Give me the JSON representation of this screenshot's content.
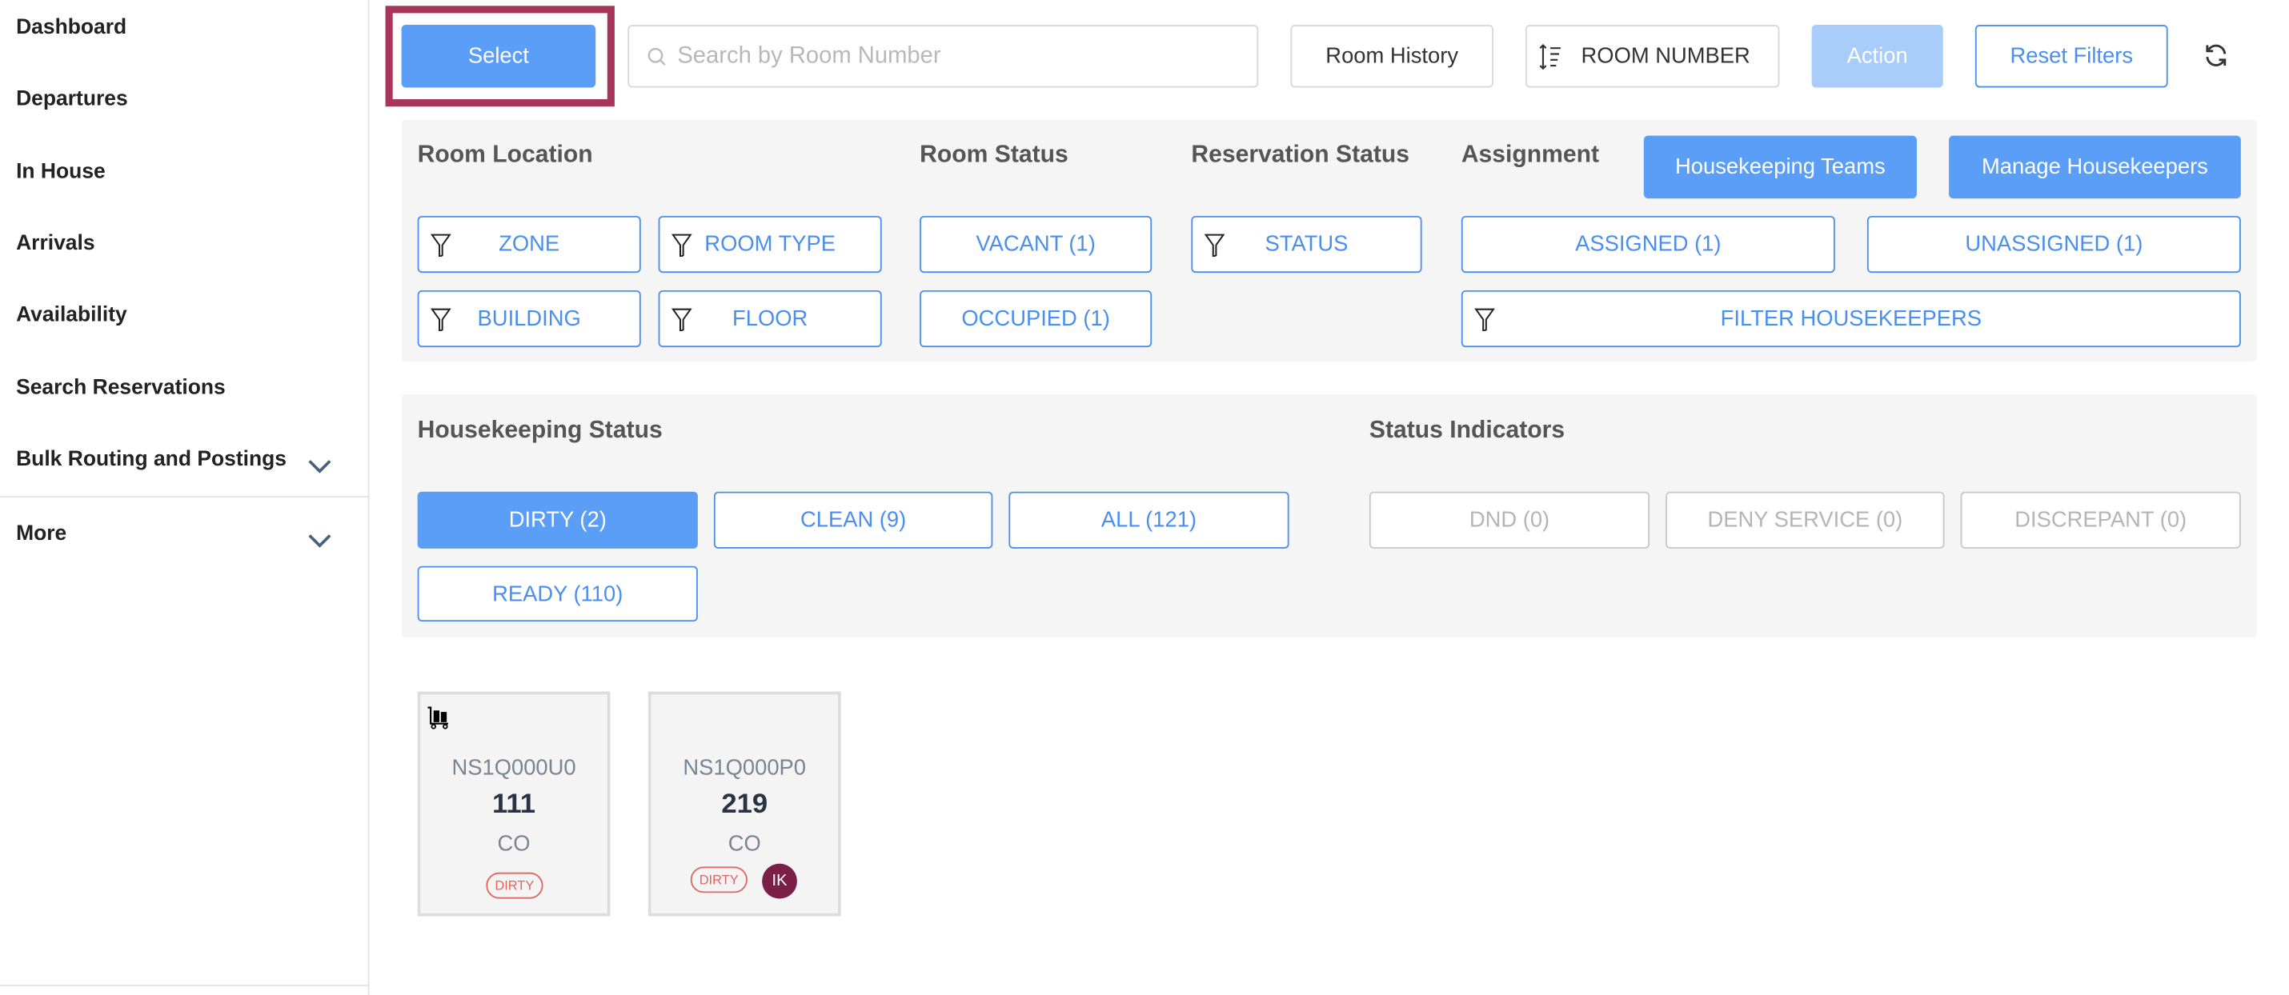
{
  "sidebar": {
    "items": [
      {
        "label": "Dashboard"
      },
      {
        "label": "Departures"
      },
      {
        "label": "In House"
      },
      {
        "label": "Arrivals"
      },
      {
        "label": "Availability"
      },
      {
        "label": "Search Reservations"
      },
      {
        "label": "Bulk Routing and Postings"
      },
      {
        "label": "More"
      }
    ]
  },
  "toolbar": {
    "select": "Select",
    "search_placeholder": "Search by Room Number",
    "room_history": "Room History",
    "sort": "ROOM NUMBER",
    "action": "Action",
    "reset": "Reset Filters"
  },
  "filters": {
    "room_location": "Room Location",
    "room_status": "Room Status",
    "reservation_status": "Reservation Status",
    "assignment": "Assignment",
    "housekeeping_teams": "Housekeeping Teams",
    "manage_housekeepers": "Manage Housekeepers",
    "zone": "ZONE",
    "room_type": "ROOM TYPE",
    "building": "BUILDING",
    "floor": "FLOOR",
    "vacant": "VACANT (1)",
    "occupied": "OCCUPIED (1)",
    "status": "STATUS",
    "assigned": "ASSIGNED (1)",
    "unassigned": "UNASSIGNED (1)",
    "filter_housekeepers": "FILTER HOUSEKEEPERS"
  },
  "housekeeping": {
    "title": "Housekeeping Status",
    "indicators_title": "Status Indicators",
    "dirty": "DIRTY (2)",
    "clean": "CLEAN (9)",
    "all": "ALL (121)",
    "ready": "READY (110)",
    "dnd": "DND (0)",
    "deny": "DENY SERVICE (0)",
    "discrepant": "DISCREPANT (0)"
  },
  "rooms": [
    {
      "code": "NS1Q000U0",
      "number": "111",
      "status": "CO",
      "hk": "DIRTY",
      "icon": "luggage-cart-icon"
    },
    {
      "code": "NS1Q000P0",
      "number": "219",
      "status": "CO",
      "hk": "DIRTY",
      "assignee": "IK"
    }
  ],
  "colors": {
    "accent": "#5b9ef7",
    "highlight": "#a8365a",
    "dirty": "#e0655f",
    "avatar": "#7b1f48"
  }
}
